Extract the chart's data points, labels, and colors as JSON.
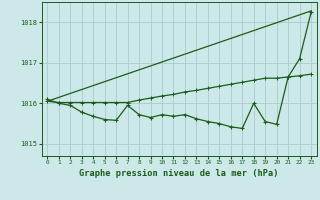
{
  "title": "Graphe pression niveau de la mer (hPa)",
  "background_color": "#cce8e8",
  "grid_color": "#aacccc",
  "line_color": "#1a5c1a",
  "xlim": [
    -0.5,
    23.5
  ],
  "ylim": [
    1014.7,
    1018.5
  ],
  "yticks": [
    1015,
    1016,
    1017,
    1018
  ],
  "xticks": [
    0,
    1,
    2,
    3,
    4,
    5,
    6,
    7,
    8,
    9,
    10,
    11,
    12,
    13,
    14,
    15,
    16,
    17,
    18,
    19,
    20,
    21,
    22,
    23
  ],
  "series1_x": [
    0,
    1,
    2,
    3,
    4,
    5,
    6,
    7,
    8,
    9,
    10,
    11,
    12,
    13,
    14,
    15,
    16,
    17,
    18,
    19,
    20,
    21,
    22,
    23
  ],
  "series1_y": [
    1016.1,
    1016.0,
    1015.95,
    1015.78,
    1015.68,
    1015.6,
    1015.58,
    1015.95,
    1015.72,
    1015.65,
    1015.72,
    1015.68,
    1015.72,
    1015.62,
    1015.55,
    1015.5,
    1015.42,
    1015.38,
    1016.0,
    1015.55,
    1015.48,
    1016.65,
    1017.1,
    1018.25
  ],
  "series2_x": [
    0,
    1,
    2,
    3,
    4,
    5,
    6,
    7,
    8,
    9,
    10,
    11,
    12,
    13,
    14,
    15,
    16,
    17,
    18,
    19,
    20,
    21,
    22,
    23
  ],
  "series2_y": [
    1016.05,
    1016.02,
    1016.02,
    1016.02,
    1016.02,
    1016.02,
    1016.02,
    1016.02,
    1016.08,
    1016.13,
    1016.18,
    1016.22,
    1016.28,
    1016.32,
    1016.37,
    1016.42,
    1016.47,
    1016.52,
    1016.57,
    1016.62,
    1016.62,
    1016.65,
    1016.68,
    1016.72
  ],
  "series3_x": [
    0,
    23
  ],
  "series3_y": [
    1016.05,
    1018.28
  ],
  "marker": "+",
  "markersize": 3.5
}
